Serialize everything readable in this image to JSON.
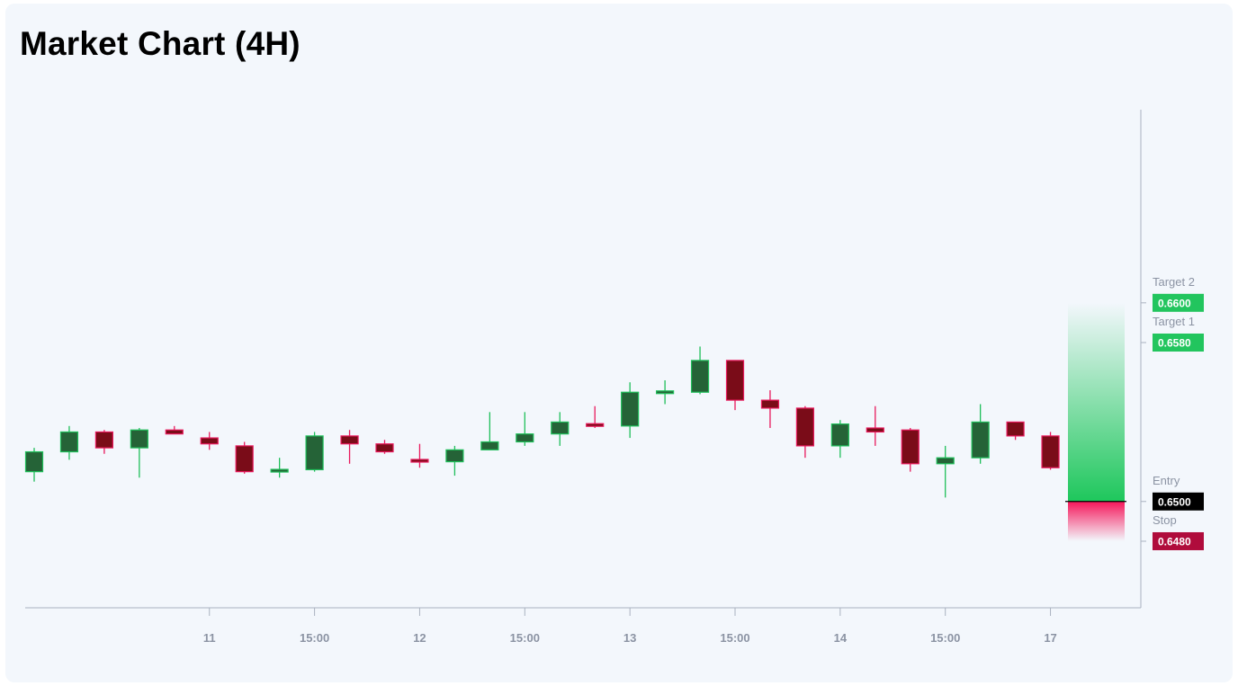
{
  "title": "Market Chart (4H)",
  "colors": {
    "background": "#f3f7fc",
    "up_body": "#256337",
    "up_border": "#1fbf5a",
    "down_body": "#7a0c18",
    "down_border": "#e8195c",
    "target_label": "#22c55e",
    "entry_label": "#000000",
    "stop_label": "#b00c3c",
    "axis": "#aab2c0"
  },
  "chart_data": {
    "type": "candlestick",
    "x_ticks": [
      {
        "index": 5,
        "label": "11"
      },
      {
        "index": 8,
        "label": "15:00"
      },
      {
        "index": 11,
        "label": "12"
      },
      {
        "index": 14,
        "label": "15:00"
      },
      {
        "index": 17,
        "label": "13"
      },
      {
        "index": 20,
        "label": "15:00"
      },
      {
        "index": 23,
        "label": "14"
      },
      {
        "index": 26,
        "label": "15:00"
      },
      {
        "index": 29,
        "label": "17"
      }
    ],
    "y_range": [
      0.64465,
      0.66945
    ],
    "candles": [
      {
        "o": 0.6515,
        "h": 0.6527,
        "l": 0.651,
        "c": 0.6525
      },
      {
        "o": 0.6525,
        "h": 0.6538,
        "l": 0.6521,
        "c": 0.6535
      },
      {
        "o": 0.6535,
        "h": 0.6536,
        "l": 0.6524,
        "c": 0.6527
      },
      {
        "o": 0.6527,
        "h": 0.6537,
        "l": 0.6512,
        "c": 0.6536
      },
      {
        "o": 0.6536,
        "h": 0.6538,
        "l": 0.6534,
        "c": 0.6534
      },
      {
        "o": 0.6532,
        "h": 0.6535,
        "l": 0.6526,
        "c": 0.6529
      },
      {
        "o": 0.6528,
        "h": 0.653,
        "l": 0.6514,
        "c": 0.6515
      },
      {
        "o": 0.6515,
        "h": 0.6522,
        "l": 0.6512,
        "c": 0.6516
      },
      {
        "o": 0.6516,
        "h": 0.6535,
        "l": 0.6515,
        "c": 0.6533
      },
      {
        "o": 0.6533,
        "h": 0.6536,
        "l": 0.6519,
        "c": 0.6529
      },
      {
        "o": 0.6529,
        "h": 0.6531,
        "l": 0.6524,
        "c": 0.6525
      },
      {
        "o": 0.6521,
        "h": 0.6529,
        "l": 0.6517,
        "c": 0.652
      },
      {
        "o": 0.652,
        "h": 0.6528,
        "l": 0.6513,
        "c": 0.6526
      },
      {
        "o": 0.6526,
        "h": 0.6545,
        "l": 0.6526,
        "c": 0.653
      },
      {
        "o": 0.653,
        "h": 0.6545,
        "l": 0.6528,
        "c": 0.6534
      },
      {
        "o": 0.6534,
        "h": 0.6545,
        "l": 0.6528,
        "c": 0.654
      },
      {
        "o": 0.6539,
        "h": 0.6548,
        "l": 0.6537,
        "c": 0.6538
      },
      {
        "o": 0.6538,
        "h": 0.656,
        "l": 0.6532,
        "c": 0.6555
      },
      {
        "o": 0.6555,
        "h": 0.6561,
        "l": 0.6549,
        "c": 0.6555
      },
      {
        "o": 0.6555,
        "h": 0.6578,
        "l": 0.6554,
        "c": 0.6571
      },
      {
        "o": 0.6571,
        "h": 0.6571,
        "l": 0.6546,
        "c": 0.6551
      },
      {
        "o": 0.6551,
        "h": 0.6556,
        "l": 0.6537,
        "c": 0.6547
      },
      {
        "o": 0.6547,
        "h": 0.6548,
        "l": 0.6522,
        "c": 0.6528
      },
      {
        "o": 0.6528,
        "h": 0.6541,
        "l": 0.6522,
        "c": 0.6539
      },
      {
        "o": 0.6537,
        "h": 0.6548,
        "l": 0.6528,
        "c": 0.6535
      },
      {
        "o": 0.6536,
        "h": 0.6537,
        "l": 0.6515,
        "c": 0.6519
      },
      {
        "o": 0.6519,
        "h": 0.6528,
        "l": 0.6502,
        "c": 0.6522
      },
      {
        "o": 0.6522,
        "h": 0.6549,
        "l": 0.6519,
        "c": 0.654
      },
      {
        "o": 0.654,
        "h": 0.654,
        "l": 0.6531,
        "c": 0.6533
      },
      {
        "o": 0.6533,
        "h": 0.6535,
        "l": 0.6516,
        "c": 0.6517
      }
    ],
    "levels": [
      {
        "name": "Target 2",
        "value_text": "0.6600",
        "value": 0.66,
        "color": "#22c55e"
      },
      {
        "name": "Target 1",
        "value_text": "0.6580",
        "value": 0.658,
        "color": "#22c55e"
      },
      {
        "name": "Entry",
        "value_text": "0.6500",
        "value": 0.65,
        "color": "#000000"
      },
      {
        "name": "Stop",
        "value_text": "0.6480",
        "value": 0.648,
        "color": "#b00c3c"
      }
    ]
  }
}
